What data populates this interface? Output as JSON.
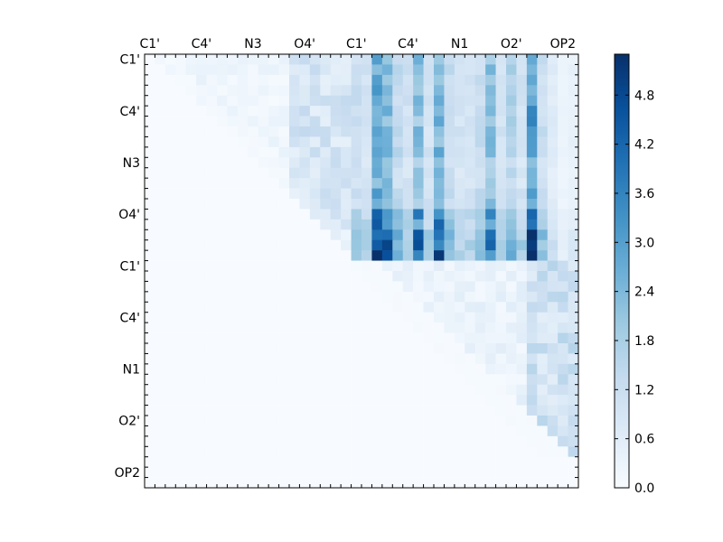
{
  "chart_data": {
    "type": "heatmap",
    "title": "",
    "xlabel": "",
    "ylabel": "",
    "x_labels": [
      "C1'",
      "C4'",
      "N3",
      "O4'",
      "C1'",
      "C4'",
      "N1",
      "O2'",
      "OP2"
    ],
    "y_labels": [
      "C1'",
      "C4'",
      "N3",
      "O4'",
      "C1'",
      "C4'",
      "N1",
      "O2'",
      "OP2"
    ],
    "grid_size": 42,
    "colorbar": {
      "range": [
        0.0,
        5.3
      ],
      "ticks": [
        "0.0",
        "0.6",
        "1.2",
        "1.8",
        "2.4",
        "3.0",
        "3.6",
        "4.2",
        "4.8"
      ],
      "tick_values": [
        0.0,
        0.6,
        1.2,
        1.8,
        2.4,
        3.0,
        3.6,
        4.2,
        4.8
      ],
      "colormap": "Blues",
      "position": "right"
    },
    "colors": {
      "low": "#f7fbff",
      "high": "#08306b"
    },
    "description_blocks": [
      {
        "region": "rows 0-19, cols 0-19",
        "value_range": [
          0.0,
          1.3
        ]
      },
      {
        "region": "rows 0-19, cols 20-41",
        "value_range": [
          0.5,
          5.3
        ]
      },
      {
        "region": "rows 20-38, cols 20-41",
        "value_range": [
          0.0,
          1.5
        ]
      }
    ]
  }
}
